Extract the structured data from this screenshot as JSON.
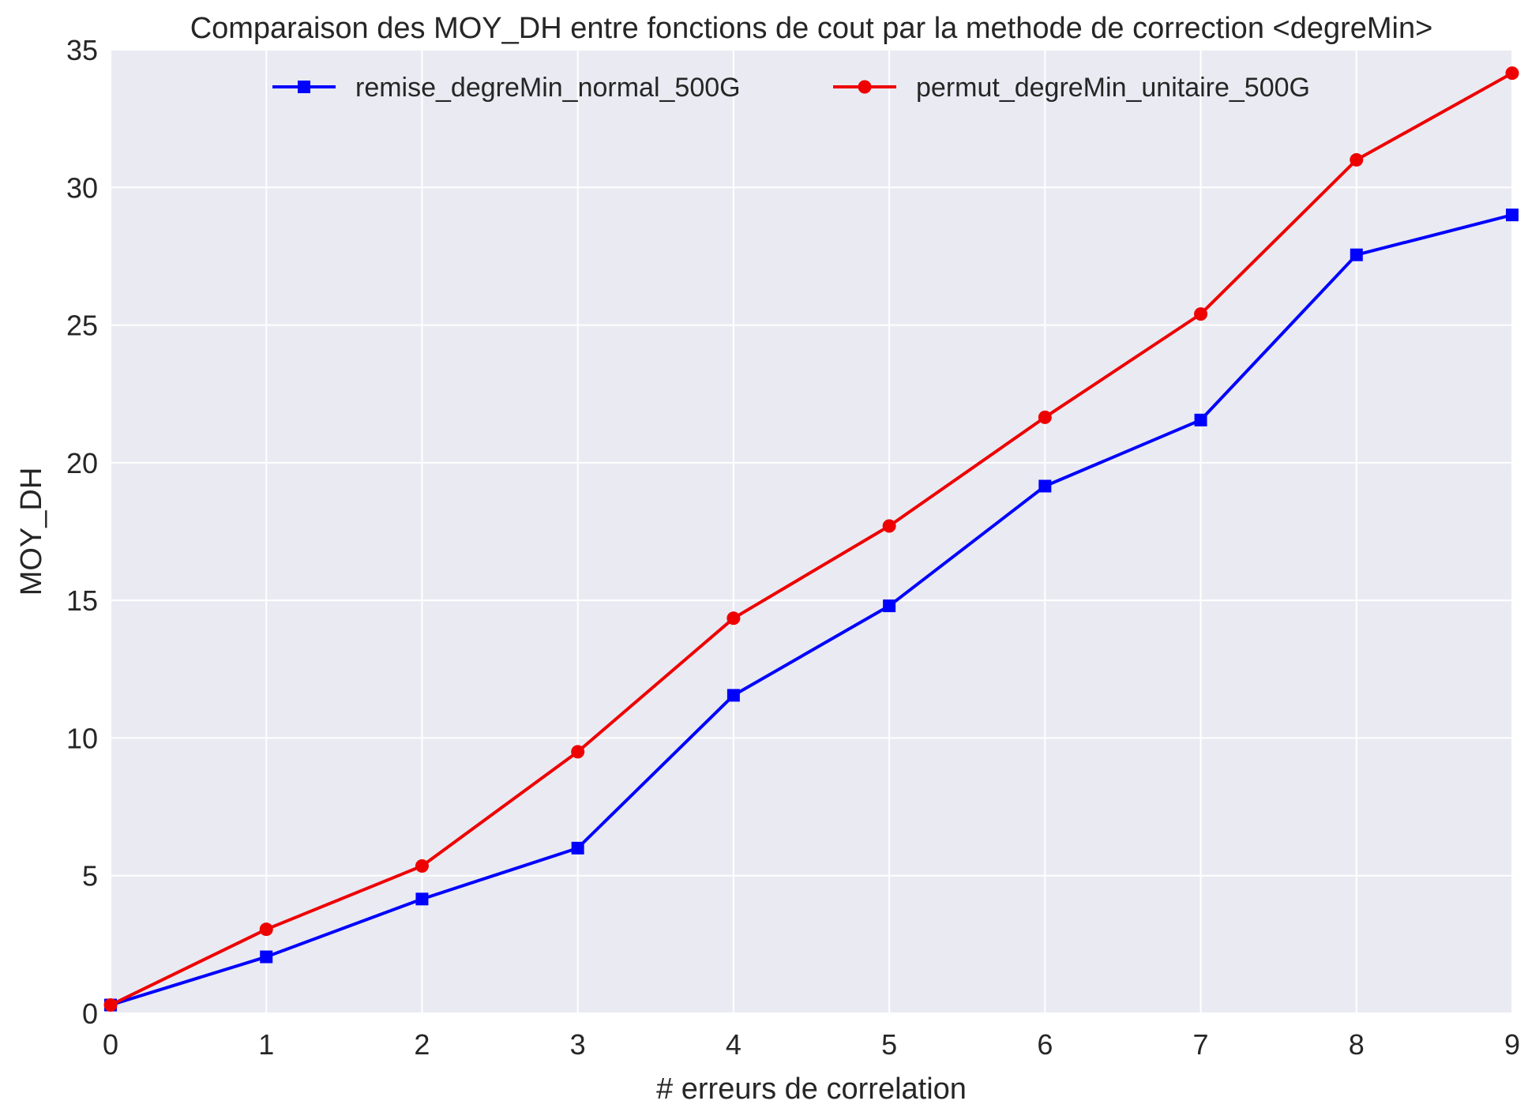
{
  "chart_data": {
    "type": "line",
    "title": "Comparaison des MOY_DH entre fonctions de cout par la methode de correction <degreMin>",
    "xlabel": "# erreurs de correlation",
    "ylabel": "MOY_DH",
    "xlim": [
      0,
      9
    ],
    "ylim": [
      0,
      35
    ],
    "xticks": [
      "0",
      "1",
      "2",
      "3",
      "4",
      "5",
      "6",
      "7",
      "8",
      "9"
    ],
    "yticks": [
      "0",
      "5",
      "10",
      "15",
      "20",
      "25",
      "30",
      "35"
    ],
    "grid": true,
    "legend_position": "top-center",
    "x": [
      0,
      1,
      2,
      3,
      4,
      5,
      6,
      7,
      8,
      9
    ],
    "series": [
      {
        "name": "remise_degreMin_normal_500G",
        "color": "#0000ff",
        "marker": "square",
        "values": [
          0.3,
          2.05,
          4.15,
          6.0,
          11.55,
          14.8,
          19.15,
          21.55,
          27.55,
          29.0
        ]
      },
      {
        "name": "permut_degreMin_unitaire_500G",
        "color": "#ee0000",
        "marker": "circle",
        "values": [
          0.3,
          3.05,
          5.35,
          9.5,
          14.35,
          17.7,
          21.65,
          25.4,
          31.0,
          34.15
        ]
      }
    ]
  }
}
